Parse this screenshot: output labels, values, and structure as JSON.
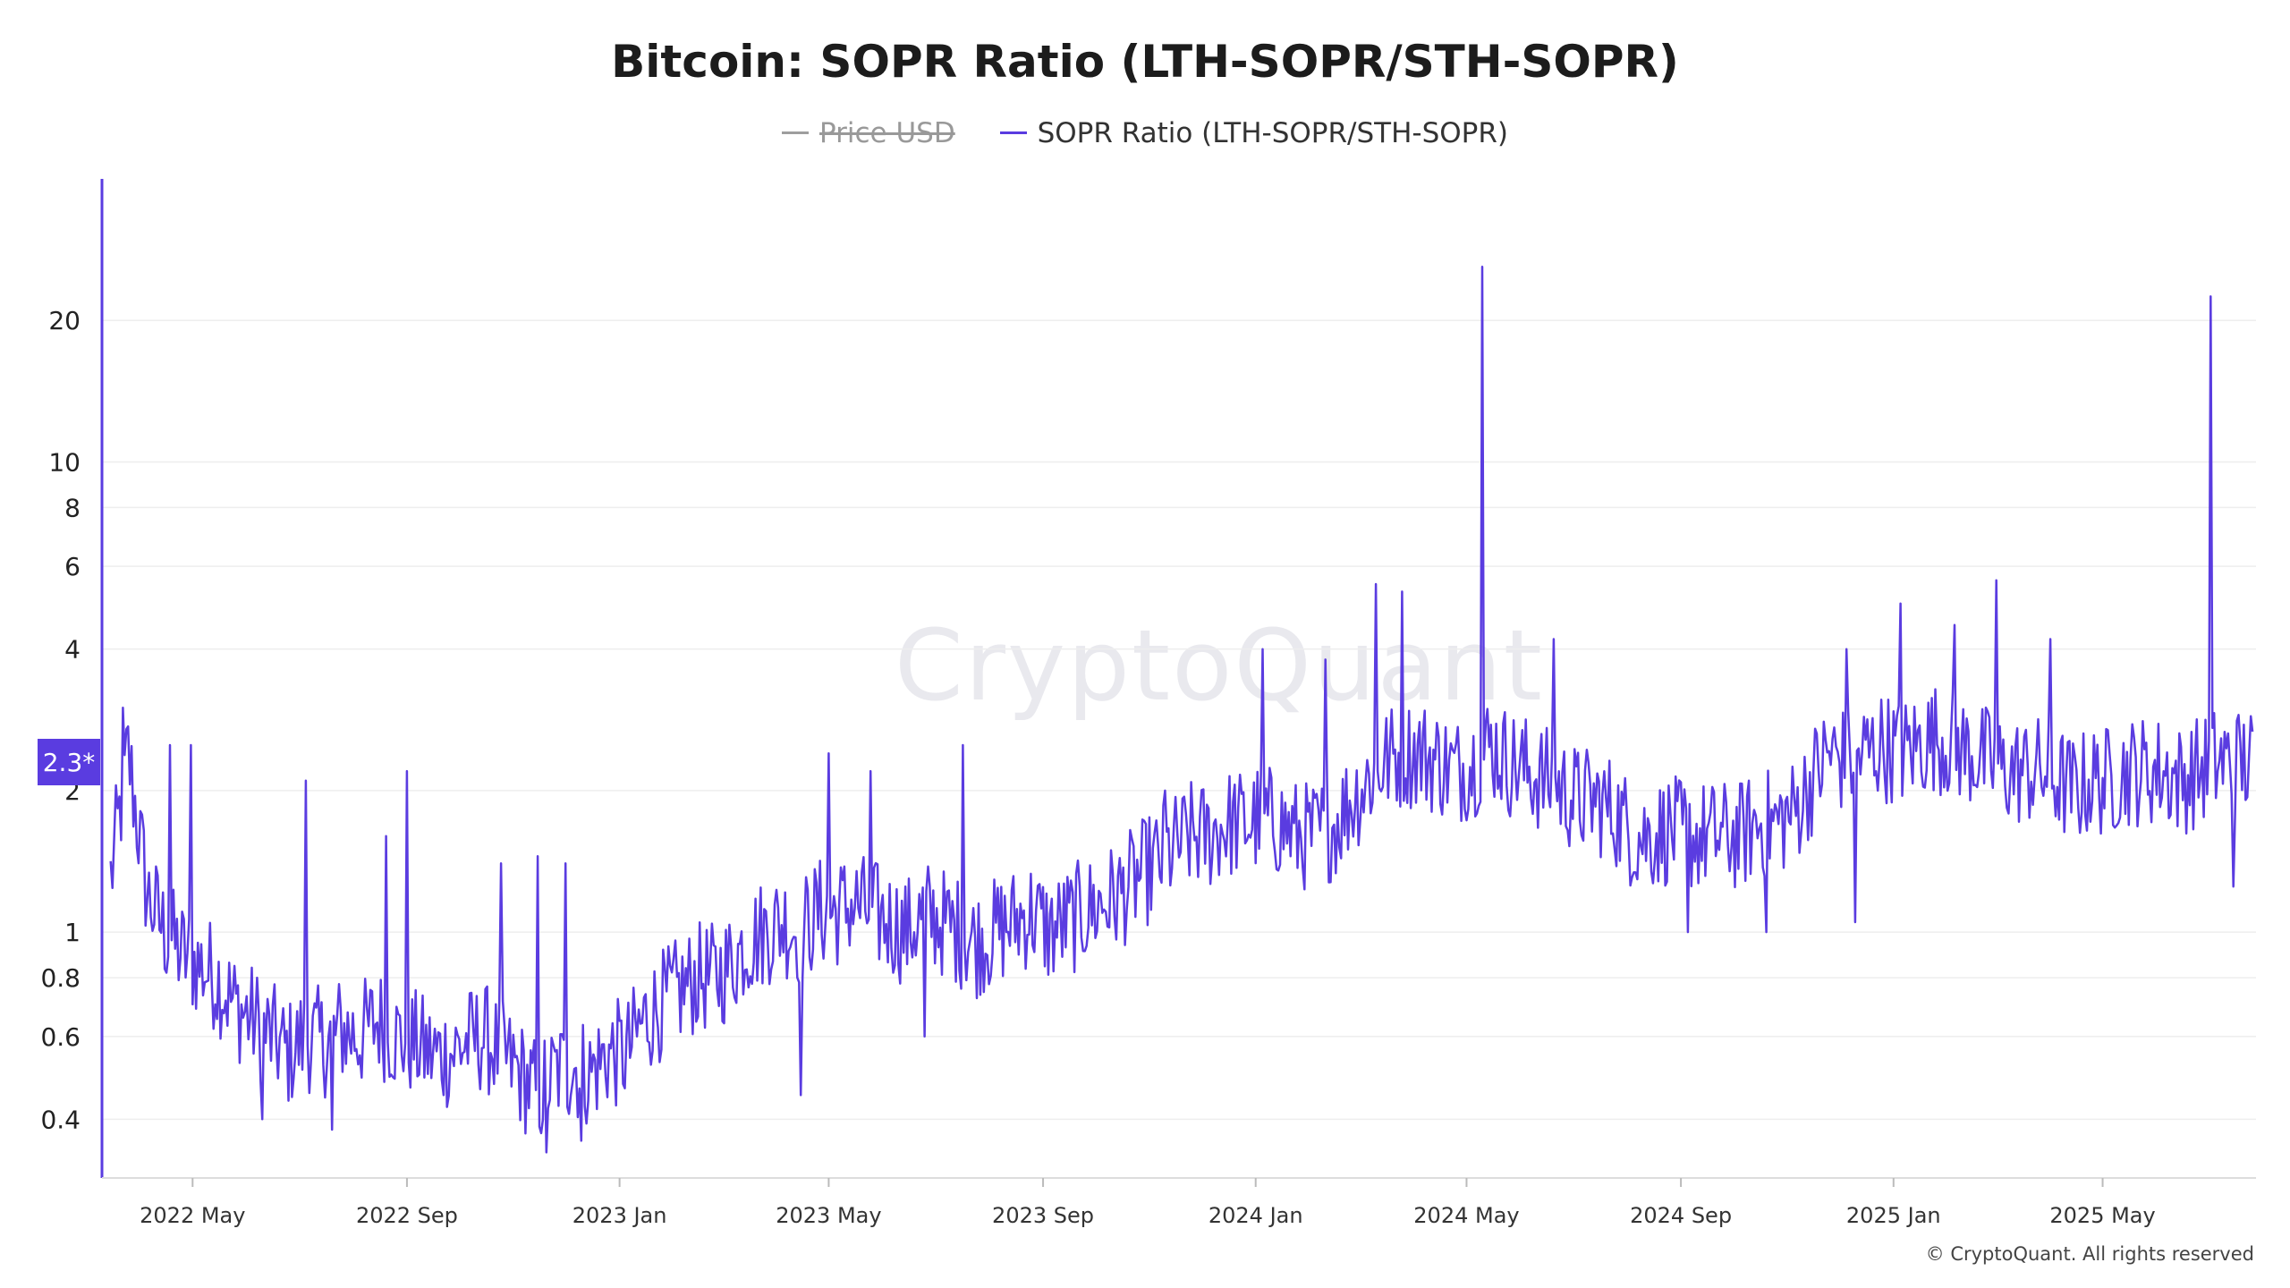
{
  "chart_data": {
    "type": "line",
    "title": "Bitcoin: SOPR Ratio (LTH-SOPR/STH-SOPR)",
    "legend": [
      {
        "name": "Price USD",
        "color": "#9e9e9e",
        "hidden": true
      },
      {
        "name": "SOPR Ratio (LTH-SOPR/STH-SOPR)",
        "color": "#5a3ce0",
        "hidden": false
      }
    ],
    "y_scale": "log",
    "ylim": [
      0.3,
      40
    ],
    "y_ticks": [
      0.4,
      0.6,
      0.8,
      1,
      2,
      4,
      6,
      8,
      10,
      20
    ],
    "y_tick_labels": [
      "0.4",
      "0.6",
      "0.8",
      "1",
      "2",
      "4",
      "6",
      "8",
      "10",
      "20"
    ],
    "xlim": [
      "2022-03-10",
      "2025-07-28"
    ],
    "x_ticks": [
      "2022-05-01",
      "2022-09-01",
      "2023-01-01",
      "2023-05-01",
      "2023-09-01",
      "2024-01-01",
      "2024-05-01",
      "2024-09-01",
      "2025-01-01",
      "2025-05-01"
    ],
    "x_tick_labels": [
      "2022 May",
      "2022 Sep",
      "2023 Jan",
      "2023 May",
      "2023 Sep",
      "2024 Jan",
      "2024 May",
      "2024 Sep",
      "2025 Jan",
      "2025 May"
    ],
    "current_value_label": "2.3*",
    "current_value": 2.3,
    "series": [
      {
        "name": "SOPR Ratio (LTH-SOPR/STH-SOPR)",
        "color": "#5a3ce0",
        "points": [
          [
            "2022-03-15",
            1.3
          ],
          [
            "2022-03-25",
            2.4
          ],
          [
            "2022-04-05",
            1.2
          ],
          [
            "2022-04-15",
            1.0
          ],
          [
            "2022-04-25",
            0.9
          ],
          [
            "2022-05-05",
            0.85
          ],
          [
            "2022-05-15",
            0.8
          ],
          [
            "2022-05-25",
            0.7
          ],
          [
            "2022-06-05",
            0.65
          ],
          [
            "2022-06-15",
            0.6
          ],
          [
            "2022-06-25",
            0.55
          ],
          [
            "2022-07-05",
            0.6
          ],
          [
            "2022-07-15",
            0.58
          ],
          [
            "2022-07-25",
            0.62
          ],
          [
            "2022-08-05",
            0.6
          ],
          [
            "2022-08-15",
            0.65
          ],
          [
            "2022-08-25",
            0.6
          ],
          [
            "2022-09-05",
            0.58
          ],
          [
            "2022-09-15",
            0.55
          ],
          [
            "2022-09-25",
            0.55
          ],
          [
            "2022-10-05",
            0.58
          ],
          [
            "2022-10-15",
            0.6
          ],
          [
            "2022-10-25",
            0.55
          ],
          [
            "2022-11-05",
            0.5
          ],
          [
            "2022-11-15",
            0.45
          ],
          [
            "2022-11-25",
            0.5
          ],
          [
            "2022-12-05",
            0.52
          ],
          [
            "2022-12-15",
            0.5
          ],
          [
            "2022-12-25",
            0.55
          ],
          [
            "2023-01-05",
            0.55
          ],
          [
            "2023-01-15",
            0.65
          ],
          [
            "2023-01-25",
            0.7
          ],
          [
            "2023-02-05",
            0.75
          ],
          [
            "2023-02-15",
            0.8
          ],
          [
            "2023-02-25",
            0.8
          ],
          [
            "2023-03-05",
            0.85
          ],
          [
            "2023-03-15",
            0.95
          ],
          [
            "2023-03-25",
            1.0
          ],
          [
            "2023-04-05",
            1.05
          ],
          [
            "2023-04-15",
            1.0
          ],
          [
            "2023-04-25",
            1.1
          ],
          [
            "2023-05-05",
            1.1
          ],
          [
            "2023-05-15",
            1.15
          ],
          [
            "2023-05-25",
            1.1
          ],
          [
            "2023-06-05",
            1.05
          ],
          [
            "2023-06-15",
            1.0
          ],
          [
            "2023-06-25",
            1.1
          ],
          [
            "2023-07-05",
            1.05
          ],
          [
            "2023-07-15",
            1.0
          ],
          [
            "2023-07-25",
            0.95
          ],
          [
            "2023-08-05",
            1.0
          ],
          [
            "2023-08-15",
            1.05
          ],
          [
            "2023-08-25",
            1.1
          ],
          [
            "2023-09-05",
            1.0
          ],
          [
            "2023-09-15",
            1.05
          ],
          [
            "2023-09-25",
            1.1
          ],
          [
            "2023-10-05",
            1.15
          ],
          [
            "2023-10-15",
            1.2
          ],
          [
            "2023-10-25",
            1.3
          ],
          [
            "2023-11-05",
            1.4
          ],
          [
            "2023-11-15",
            1.5
          ],
          [
            "2023-11-25",
            1.6
          ],
          [
            "2023-12-05",
            1.6
          ],
          [
            "2023-12-15",
            1.7
          ],
          [
            "2023-12-25",
            1.7
          ],
          [
            "2024-01-05",
            1.75
          ],
          [
            "2024-01-15",
            1.7
          ],
          [
            "2024-01-25",
            1.6
          ],
          [
            "2024-02-05",
            1.6
          ],
          [
            "2024-02-15",
            1.7
          ],
          [
            "2024-02-25",
            1.9
          ],
          [
            "2024-03-05",
            2.1
          ],
          [
            "2024-03-15",
            2.3
          ],
          [
            "2024-03-25",
            2.4
          ],
          [
            "2024-04-05",
            2.4
          ],
          [
            "2024-04-15",
            2.3
          ],
          [
            "2024-04-25",
            2.2
          ],
          [
            "2024-05-05",
            2.3
          ],
          [
            "2024-05-15",
            2.5
          ],
          [
            "2024-05-25",
            2.3
          ],
          [
            "2024-06-05",
            2.2
          ],
          [
            "2024-06-15",
            2.1
          ],
          [
            "2024-06-25",
            2.0
          ],
          [
            "2024-07-05",
            1.9
          ],
          [
            "2024-07-15",
            1.9
          ],
          [
            "2024-07-25",
            1.8
          ],
          [
            "2024-08-05",
            1.6
          ],
          [
            "2024-08-15",
            1.6
          ],
          [
            "2024-08-25",
            1.65
          ],
          [
            "2024-09-05",
            1.6
          ],
          [
            "2024-09-15",
            1.6
          ],
          [
            "2024-09-25",
            1.6
          ],
          [
            "2024-10-05",
            1.6
          ],
          [
            "2024-10-15",
            1.7
          ],
          [
            "2024-10-25",
            1.7
          ],
          [
            "2024-11-05",
            1.8
          ],
          [
            "2024-11-15",
            2.1
          ],
          [
            "2024-11-25",
            2.4
          ],
          [
            "2024-12-05",
            2.3
          ],
          [
            "2024-12-15",
            2.4
          ],
          [
            "2024-12-25",
            2.5
          ],
          [
            "2025-01-05",
            2.4
          ],
          [
            "2025-01-15",
            2.5
          ],
          [
            "2025-01-25",
            2.6
          ],
          [
            "2025-02-05",
            2.5
          ],
          [
            "2025-02-15",
            2.4
          ],
          [
            "2025-02-25",
            2.3
          ],
          [
            "2025-03-05",
            2.2
          ],
          [
            "2025-03-15",
            2.2
          ],
          [
            "2025-03-25",
            2.2
          ],
          [
            "2025-04-05",
            2.1
          ],
          [
            "2025-04-15",
            2.0
          ],
          [
            "2025-04-25",
            2.1
          ],
          [
            "2025-05-05",
            2.1
          ],
          [
            "2025-05-15",
            2.2
          ],
          [
            "2025-05-25",
            2.2
          ],
          [
            "2025-06-05",
            2.2
          ],
          [
            "2025-06-15",
            2.1
          ],
          [
            "2025-06-25",
            2.2
          ],
          [
            "2025-07-05",
            2.3
          ],
          [
            "2025-07-15",
            2.3
          ],
          [
            "2025-07-26",
            2.3
          ]
        ],
        "spikes": [
          [
            "2022-03-22",
            3.0
          ],
          [
            "2022-04-18",
            2.5
          ],
          [
            "2022-04-30",
            2.5
          ],
          [
            "2022-07-05",
            2.1
          ],
          [
            "2022-08-20",
            1.6
          ],
          [
            "2022-09-01",
            2.2
          ],
          [
            "2022-10-25",
            1.4
          ],
          [
            "2022-11-15",
            1.45
          ],
          [
            "2022-12-01",
            1.4
          ],
          [
            "2023-05-01",
            2.4
          ],
          [
            "2023-05-25",
            2.2
          ],
          [
            "2023-07-17",
            2.5
          ],
          [
            "2023-11-10",
            2.0
          ],
          [
            "2024-01-05",
            4.0
          ],
          [
            "2024-02-10",
            3.8
          ],
          [
            "2024-03-10",
            5.5
          ],
          [
            "2024-03-25",
            5.3
          ],
          [
            "2024-05-10",
            26.0
          ],
          [
            "2024-06-20",
            4.2
          ],
          [
            "2024-12-05",
            4.0
          ],
          [
            "2025-01-05",
            5.0
          ],
          [
            "2025-02-05",
            4.5
          ],
          [
            "2025-03-01",
            5.6
          ],
          [
            "2025-04-01",
            4.2
          ],
          [
            "2025-07-02",
            22.5
          ]
        ],
        "dips": [
          [
            "2022-06-10",
            0.4
          ],
          [
            "2022-07-20",
            0.38
          ],
          [
            "2022-11-20",
            0.34
          ],
          [
            "2022-12-10",
            0.36
          ],
          [
            "2023-04-15",
            0.45
          ],
          [
            "2023-06-25",
            0.6
          ],
          [
            "2024-09-05",
            1.0
          ],
          [
            "2024-10-20",
            1.0
          ],
          [
            "2024-12-10",
            1.05
          ],
          [
            "2025-07-15",
            1.25
          ]
        ]
      }
    ]
  },
  "watermark": "CryptoQuant",
  "copyright": "© CryptoQuant. All rights reserved"
}
